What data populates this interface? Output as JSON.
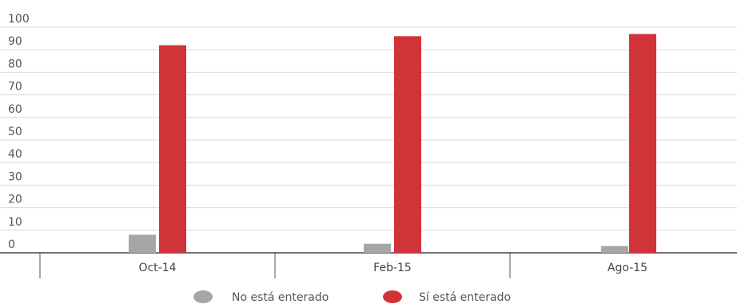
{
  "chart_data": {
    "type": "bar",
    "categories": [
      "Oct-14",
      "Feb-15",
      "Ago-15"
    ],
    "series": [
      {
        "name": "No está enterado",
        "values": [
          8,
          4,
          3
        ],
        "color": "#a6a6a6"
      },
      {
        "name": "Sí está enterado",
        "values": [
          92,
          96,
          97
        ],
        "color": "#d13438"
      }
    ],
    "y_ticks": [
      "0",
      "10",
      "20",
      "30",
      "40",
      "50",
      "60",
      "70",
      "80",
      "90",
      "100"
    ],
    "ylim": [
      0,
      100
    ],
    "grid": true,
    "legend_position": "bottom-center",
    "title": "",
    "xlabel": "",
    "ylabel": ""
  }
}
